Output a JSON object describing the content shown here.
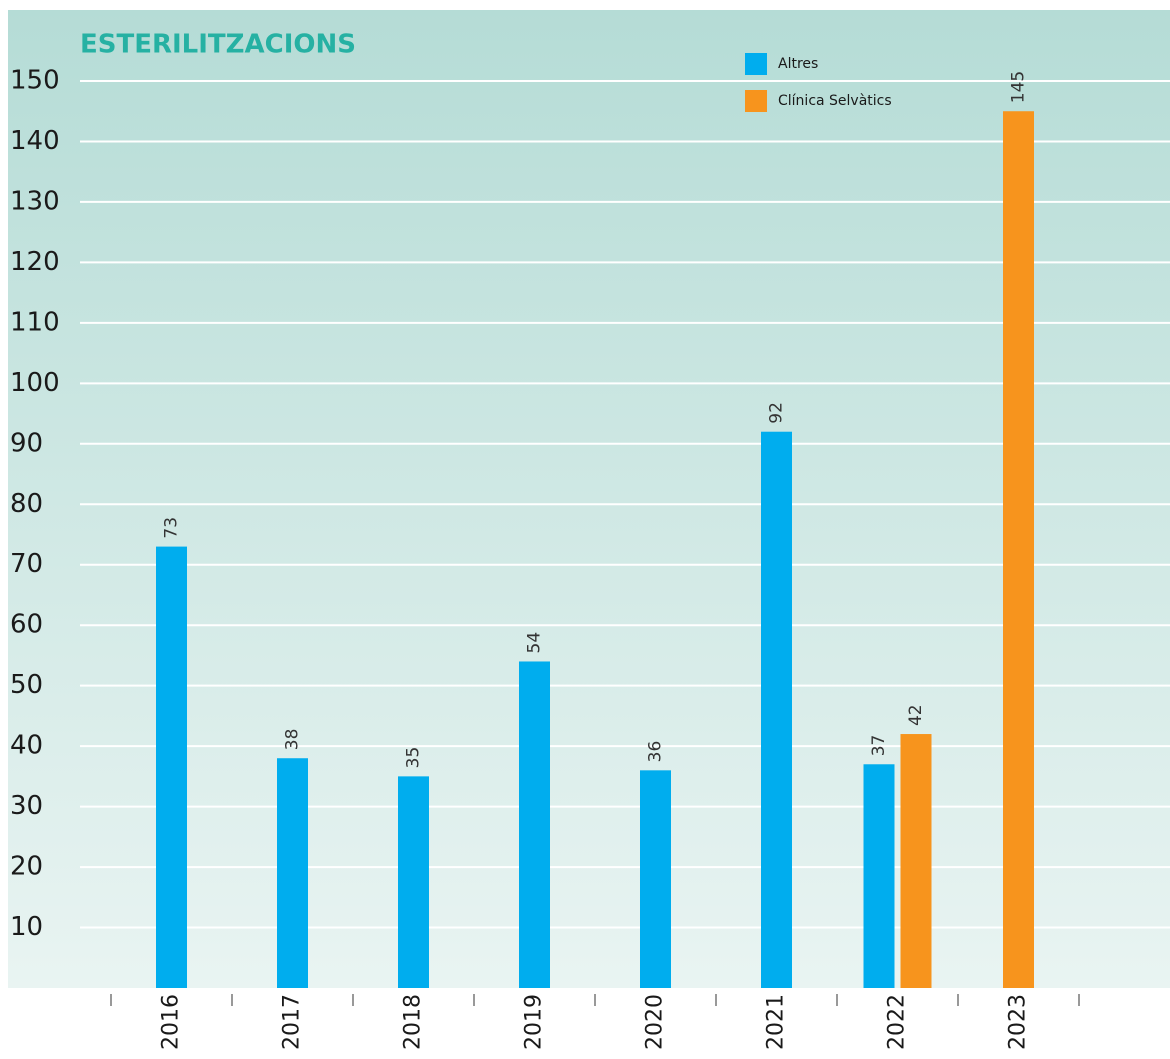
{
  "chart_data": {
    "type": "bar",
    "title": "ESTERILITZACIONS",
    "categories": [
      "2016",
      "2017",
      "2018",
      "2019",
      "2020",
      "2021",
      "2022",
      "2023"
    ],
    "series": [
      {
        "name": "Altres",
        "color": "#00adee",
        "values": [
          73,
          38,
          35,
          54,
          36,
          92,
          37,
          null
        ]
      },
      {
        "name": "Clínica Selvàtics",
        "color": "#f7941d",
        "values": [
          null,
          null,
          null,
          null,
          null,
          null,
          42,
          145
        ]
      }
    ],
    "ylim": [
      0,
      150
    ],
    "yticks": [
      10,
      20,
      30,
      40,
      50,
      60,
      70,
      80,
      90,
      100,
      110,
      120,
      130,
      140,
      150
    ],
    "grid": true,
    "legend": "top-right"
  }
}
